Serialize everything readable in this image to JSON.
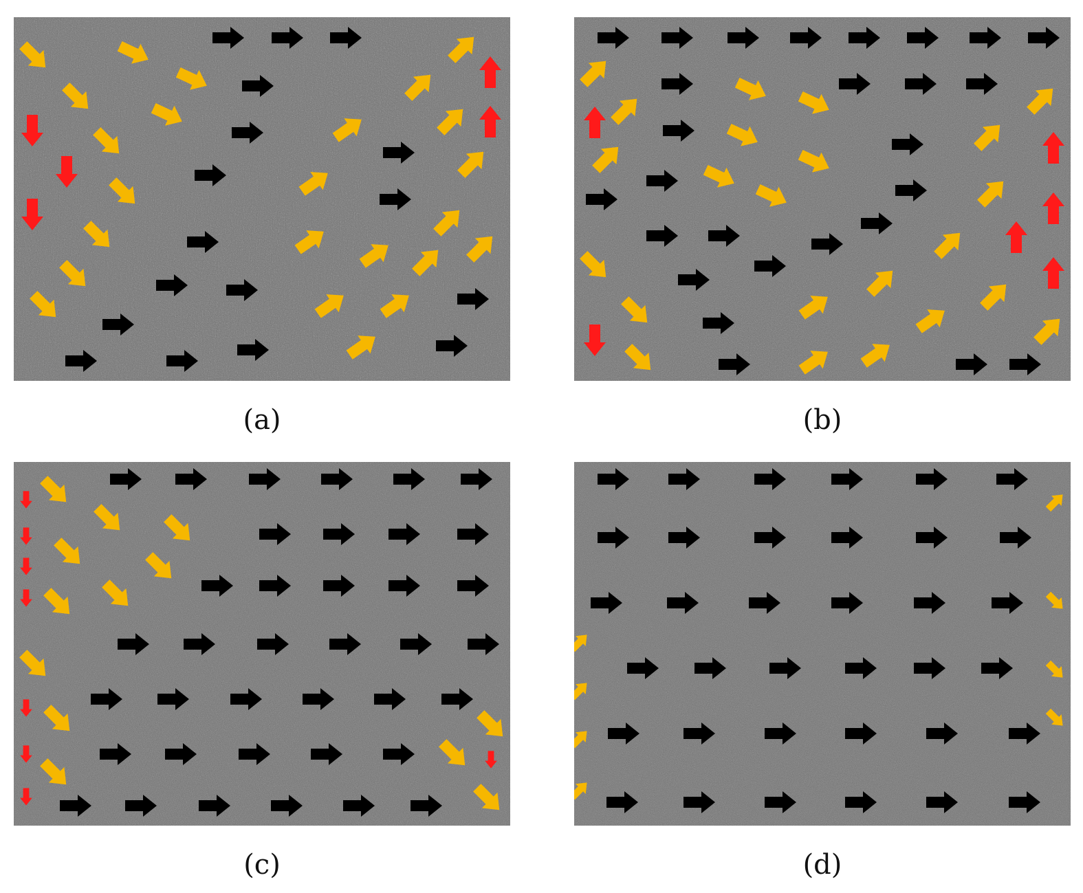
{
  "figure": {
    "panels": [
      {
        "id": "a",
        "label": "(a)"
      },
      {
        "id": "b",
        "label": "(b)"
      },
      {
        "id": "c",
        "label": "(c)"
      },
      {
        "id": "d",
        "label": "(d)"
      }
    ]
  },
  "colors": {
    "aligned_arrow": "#000000",
    "tilted_arrow": "#f6b700",
    "vertical_arrow": "#ff1a1a",
    "background": "#6e6e6e"
  },
  "icons": [
    "arrow-icon",
    "noise-texture"
  ]
}
